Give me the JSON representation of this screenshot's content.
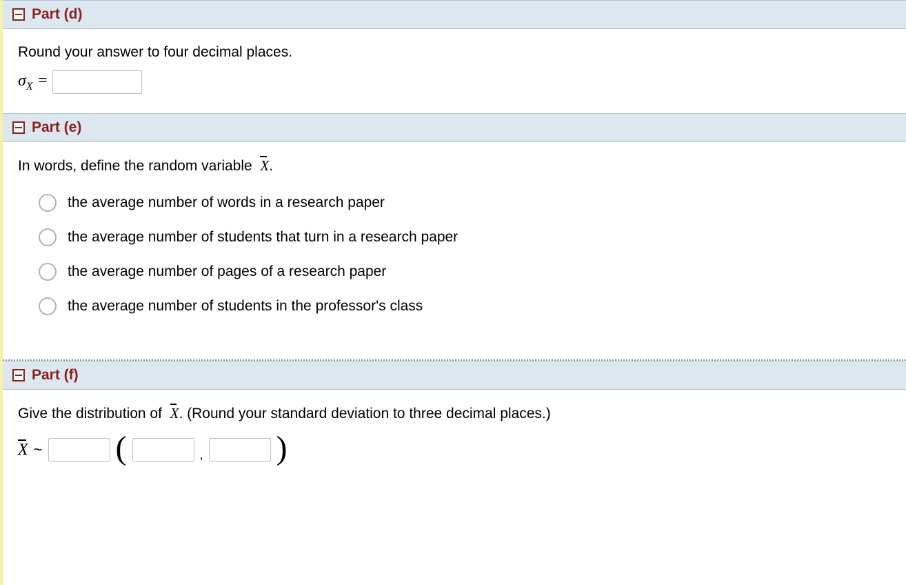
{
  "colors": {
    "header_bg": "#dde7ef",
    "header_border": "#b6c7d4",
    "accent": "#8a1f1f",
    "left_strip": "#f6f0a8",
    "text": "#000000",
    "input_border": "#bfbfbf",
    "radio_border": "#b3b3b3",
    "divider": "#8a8a8a"
  },
  "part_d": {
    "title": "Part (d)",
    "instruction": "Round your answer to four decimal places.",
    "symbol_html": "σ<sub>X</sub> =",
    "input_value": ""
  },
  "part_e": {
    "title": "Part (e)",
    "question_prefix": "In words, define the random variable ",
    "question_var": "X",
    "question_suffix": ".",
    "options": [
      "the average number of words in a research paper",
      "the average number of students that turn in a research paper",
      "the average number of pages of a research paper",
      "the average number of students in the professor's class"
    ]
  },
  "part_f": {
    "title": "Part (f)",
    "question_prefix": "Give the distribution of ",
    "question_var": "X",
    "question_suffix": ".  (Round your standard deviation to three decimal places.)",
    "dist_var": "X",
    "tilde": "~",
    "inputs": {
      "dist_name": "",
      "param1": "",
      "param2": ""
    }
  }
}
